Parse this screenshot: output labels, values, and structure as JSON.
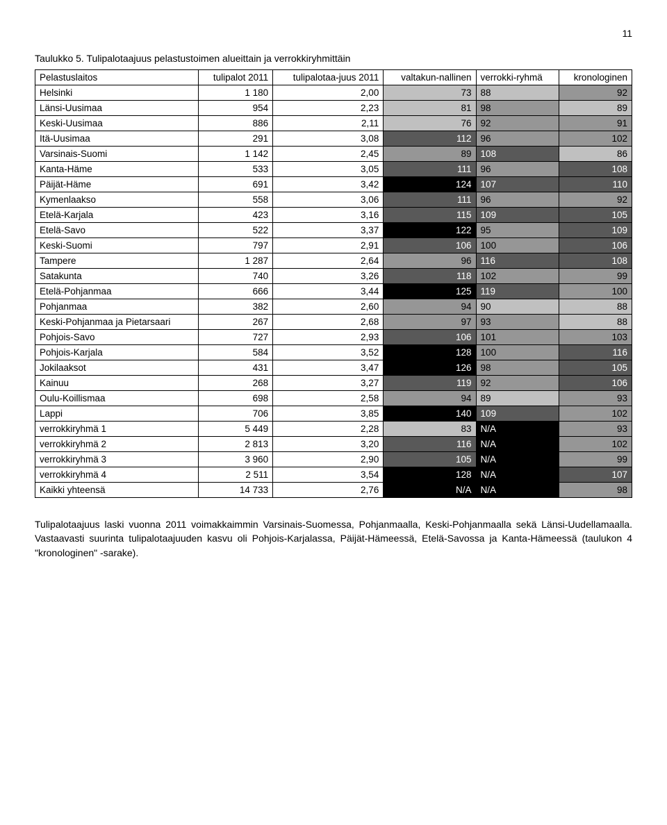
{
  "page_number": "11",
  "caption": "Taulukko 5. Tulipalotaajuus pelastustoimen alueittain ja verrokkiryhmittäin",
  "columns": [
    "Pelastuslaitos",
    "tulipalot 2011",
    "tulipalotaa-juus 2011",
    "valtakun-nallinen",
    "verrokki-ryhmä",
    "kronologinen"
  ],
  "col_align": [
    "left",
    "right",
    "right",
    "right",
    "left",
    "right"
  ],
  "colors": {
    "black": "#000000",
    "dark": "#595959",
    "gray": "#969696",
    "light": "#c0c0c0",
    "none": "#ffffff"
  },
  "rows": [
    {
      "c": [
        "Helsinki",
        "1 180",
        "2,00",
        "73",
        "88",
        "92"
      ],
      "bg": [
        null,
        null,
        null,
        "light",
        "light",
        "gray"
      ]
    },
    {
      "c": [
        "Länsi-Uusimaa",
        "954",
        "2,23",
        "81",
        "98",
        "89"
      ],
      "bg": [
        null,
        null,
        null,
        "light",
        "gray",
        "light"
      ]
    },
    {
      "c": [
        "Keski-Uusimaa",
        "886",
        "2,11",
        "76",
        "92",
        "91"
      ],
      "bg": [
        null,
        null,
        null,
        "light",
        "gray",
        "gray"
      ]
    },
    {
      "c": [
        "Itä-Uusimaa",
        "291",
        "3,08",
        "112",
        "96",
        "102"
      ],
      "bg": [
        null,
        null,
        null,
        "dark",
        "gray",
        "gray"
      ]
    },
    {
      "c": [
        "Varsinais-Suomi",
        "1 142",
        "2,45",
        "89",
        "108",
        "86"
      ],
      "bg": [
        null,
        null,
        null,
        "gray",
        "dark",
        "light"
      ]
    },
    {
      "c": [
        "Kanta-Häme",
        "533",
        "3,05",
        "111",
        "96",
        "108"
      ],
      "bg": [
        null,
        null,
        null,
        "dark",
        "gray",
        "dark"
      ]
    },
    {
      "c": [
        "Päijät-Häme",
        "691",
        "3,42",
        "124",
        "107",
        "110"
      ],
      "bg": [
        null,
        null,
        null,
        "black",
        "dark",
        "dark"
      ]
    },
    {
      "c": [
        "Kymenlaakso",
        "558",
        "3,06",
        "111",
        "96",
        "92"
      ],
      "bg": [
        null,
        null,
        null,
        "dark",
        "gray",
        "gray"
      ]
    },
    {
      "c": [
        "Etelä-Karjala",
        "423",
        "3,16",
        "115",
        "109",
        "105"
      ],
      "bg": [
        null,
        null,
        null,
        "dark",
        "dark",
        "dark"
      ]
    },
    {
      "c": [
        "Etelä-Savo",
        "522",
        "3,37",
        "122",
        "95",
        "109"
      ],
      "bg": [
        null,
        null,
        null,
        "black",
        "gray",
        "dark"
      ]
    },
    {
      "c": [
        "Keski-Suomi",
        "797",
        "2,91",
        "106",
        "100",
        "106"
      ],
      "bg": [
        null,
        null,
        null,
        "dark",
        "gray",
        "dark"
      ]
    },
    {
      "c": [
        "Tampere",
        "1 287",
        "2,64",
        "96",
        "116",
        "108"
      ],
      "bg": [
        null,
        null,
        null,
        "gray",
        "dark",
        "dark"
      ]
    },
    {
      "c": [
        "Satakunta",
        "740",
        "3,26",
        "118",
        "102",
        "99"
      ],
      "bg": [
        null,
        null,
        null,
        "dark",
        "gray",
        "gray"
      ]
    },
    {
      "c": [
        "Etelä-Pohjanmaa",
        "666",
        "3,44",
        "125",
        "119",
        "100"
      ],
      "bg": [
        null,
        null,
        null,
        "black",
        "dark",
        "gray"
      ]
    },
    {
      "c": [
        "Pohjanmaa",
        "382",
        "2,60",
        "94",
        "90",
        "88"
      ],
      "bg": [
        null,
        null,
        null,
        "gray",
        "light",
        "light"
      ]
    },
    {
      "c": [
        "Keski-Pohjanmaa ja Pietarsaari",
        "267",
        "2,68",
        "97",
        "93",
        "88"
      ],
      "bg": [
        null,
        null,
        null,
        "gray",
        "gray",
        "light"
      ]
    },
    {
      "c": [
        "Pohjois-Savo",
        "727",
        "2,93",
        "106",
        "101",
        "103"
      ],
      "bg": [
        null,
        null,
        null,
        "dark",
        "gray",
        "gray"
      ]
    },
    {
      "c": [
        "Pohjois-Karjala",
        "584",
        "3,52",
        "128",
        "100",
        "116"
      ],
      "bg": [
        null,
        null,
        null,
        "black",
        "gray",
        "dark"
      ]
    },
    {
      "c": [
        "Jokilaaksot",
        "431",
        "3,47",
        "126",
        "98",
        "105"
      ],
      "bg": [
        null,
        null,
        null,
        "black",
        "gray",
        "dark"
      ]
    },
    {
      "c": [
        "Kainuu",
        "268",
        "3,27",
        "119",
        "92",
        "106"
      ],
      "bg": [
        null,
        null,
        null,
        "dark",
        "gray",
        "dark"
      ]
    },
    {
      "c": [
        "Oulu-Koillismaa",
        "698",
        "2,58",
        "94",
        "89",
        "93"
      ],
      "bg": [
        null,
        null,
        null,
        "gray",
        "light",
        "gray"
      ]
    },
    {
      "c": [
        "Lappi",
        "706",
        "3,85",
        "140",
        "109",
        "102"
      ],
      "bg": [
        null,
        null,
        null,
        "black",
        "dark",
        "gray"
      ]
    },
    {
      "c": [
        "verrokkiryhmä 1",
        "5 449",
        "2,28",
        "83",
        "N/A",
        "93"
      ],
      "bg": [
        null,
        null,
        null,
        "light",
        "black",
        "gray"
      ]
    },
    {
      "c": [
        "verrokkiryhmä 2",
        "2 813",
        "3,20",
        "116",
        "N/A",
        "102"
      ],
      "bg": [
        null,
        null,
        null,
        "dark",
        "black",
        "gray"
      ]
    },
    {
      "c": [
        "verrokkiryhmä 3",
        "3 960",
        "2,90",
        "105",
        "N/A",
        "99"
      ],
      "bg": [
        null,
        null,
        null,
        "dark",
        "black",
        "gray"
      ]
    },
    {
      "c": [
        "verrokkiryhmä 4",
        "2 511",
        "3,54",
        "128",
        "N/A",
        "107"
      ],
      "bg": [
        null,
        null,
        null,
        "black",
        "black",
        "dark"
      ]
    },
    {
      "c": [
        "Kaikki yhteensä",
        "14 733",
        "2,76",
        "N/A",
        "N/A",
        "98"
      ],
      "bg": [
        null,
        null,
        null,
        "black",
        "black",
        "gray"
      ]
    }
  ],
  "body_text": "Tulipalotaajuus laski vuonna 2011 voimakkaimmin Varsinais-Suomessa, Pohjanmaalla, Keski-Pohjanmaalla sekä Länsi-Uudellamaalla. Vastaavasti suurinta tulipalotaajuuden kasvu oli Pohjois-Karjalassa, Päijät-Hämeessä, Etelä-Savossa ja Kanta-Hämeessä (taulukon 4 \"kronologinen\" -sarake)."
}
